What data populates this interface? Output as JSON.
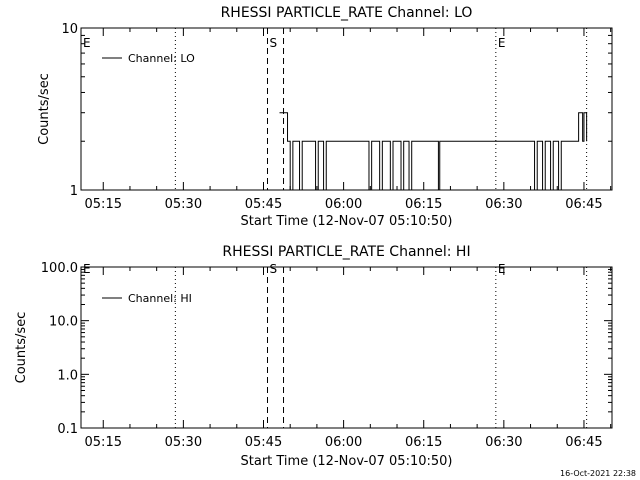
{
  "chart_data": [
    {
      "type": "line",
      "title": "RHESSI PARTICLE_RATE Channel: LO",
      "xlabel": "Start Time (12-Nov-07 05:10:50)",
      "ylabel": "Counts/sec",
      "yscale": "log",
      "ylim": [
        1,
        10
      ],
      "xlim": [
        "05:10:50",
        "06:50:15"
      ],
      "y_tick_labels": [
        "1",
        "10"
      ],
      "x_tick_labels": [
        "05:15",
        "05:30",
        "05:45",
        "06:00",
        "06:15",
        "06:30",
        "06:45"
      ],
      "legend": {
        "entries": [
          "Channel: LO"
        ],
        "position": "top-left"
      },
      "markers": [
        {
          "label": "E",
          "time": "05:10:50",
          "style": "none"
        },
        {
          "label": "",
          "time": "05:28:30",
          "style": "dotted"
        },
        {
          "label": "S",
          "time": "05:45:45",
          "style": "dashed"
        },
        {
          "label": "",
          "time": "05:48:45",
          "style": "dashed"
        },
        {
          "label": "E",
          "time": "06:28:30",
          "style": "dotted"
        },
        {
          "label": "",
          "time": "06:45:30",
          "style": "dotted"
        }
      ],
      "series": [
        {
          "name": "Channel: LO",
          "x": [
            "05:48:00",
            "05:49:00",
            "05:49:30",
            "05:50:00",
            "05:50:15",
            "05:50:30",
            "05:51:30",
            "05:51:45",
            "05:52:00",
            "05:52:15",
            "05:52:30",
            "05:54:30",
            "05:54:45",
            "05:55:00",
            "05:55:15",
            "05:55:30",
            "05:56:00",
            "05:56:15",
            "05:56:30",
            "05:56:45",
            "05:57:00",
            "06:04:30",
            "06:04:45",
            "06:05:00",
            "06:05:15",
            "06:05:30",
            "06:06:30",
            "06:06:45",
            "06:07:00",
            "06:07:15",
            "06:07:30",
            "06:08:30",
            "06:08:45",
            "06:09:00",
            "06:09:15",
            "06:09:30",
            "06:10:30",
            "06:10:45",
            "06:11:00",
            "06:11:15",
            "06:11:30",
            "06:12:00",
            "06:12:15",
            "06:12:30",
            "06:12:45",
            "06:13:00",
            "06:17:30",
            "06:17:45",
            "06:18:00",
            "06:35:30",
            "06:35:45",
            "06:36:00",
            "06:36:15",
            "06:36:30",
            "06:37:00",
            "06:37:15",
            "06:37:30",
            "06:37:45",
            "06:38:00",
            "06:38:30",
            "06:38:45",
            "06:39:00",
            "06:39:15",
            "06:39:30",
            "06:40:00",
            "06:40:15",
            "06:40:30",
            "06:40:45",
            "06:41:00",
            "06:43:30",
            "06:43:45",
            "06:44:00",
            "06:44:30",
            "06:44:45",
            "06:45:00",
            "06:45:15",
            "06:45:30"
          ],
          "y": [
            3,
            3,
            2,
            1,
            1,
            2,
            2,
            1,
            1,
            2,
            2,
            2,
            1,
            1,
            2,
            2,
            2,
            1,
            1,
            2,
            2,
            2,
            1,
            1,
            2,
            2,
            2,
            1,
            1,
            2,
            2,
            2,
            1,
            1,
            2,
            2,
            2,
            1,
            1,
            2,
            2,
            2,
            1,
            1,
            2,
            2,
            2,
            1,
            2,
            2,
            1,
            1,
            2,
            2,
            2,
            1,
            1,
            2,
            2,
            2,
            1,
            1,
            2,
            2,
            2,
            1,
            1,
            2,
            2,
            2,
            2,
            3,
            3,
            2,
            3,
            3,
            2
          ]
        }
      ]
    },
    {
      "type": "line",
      "title": "RHESSI PARTICLE_RATE Channel: HI",
      "xlabel": "Start Time (12-Nov-07 05:10:50)",
      "ylabel": "Counts/sec",
      "yscale": "log",
      "ylim": [
        0.1,
        100
      ],
      "xlim": [
        "05:10:50",
        "06:50:15"
      ],
      "y_tick_labels": [
        "0.1",
        "1.0",
        "10.0",
        "100.0"
      ],
      "x_tick_labels": [
        "05:15",
        "05:30",
        "05:45",
        "06:00",
        "06:15",
        "06:30",
        "06:45"
      ],
      "legend": {
        "entries": [
          "Channel: HI"
        ],
        "position": "top-left"
      },
      "markers": [
        {
          "label": "E",
          "time": "05:10:50",
          "style": "none"
        },
        {
          "label": "",
          "time": "05:28:30",
          "style": "dotted"
        },
        {
          "label": "S",
          "time": "05:45:45",
          "style": "dashed"
        },
        {
          "label": "",
          "time": "05:48:45",
          "style": "dashed"
        },
        {
          "label": "E",
          "time": "06:28:30",
          "style": "dotted"
        },
        {
          "label": "",
          "time": "06:45:30",
          "style": "dotted"
        }
      ],
      "series": [
        {
          "name": "Channel: HI",
          "x": [],
          "y": []
        }
      ]
    }
  ],
  "timestamp": "16-Oct-2021 22:38"
}
